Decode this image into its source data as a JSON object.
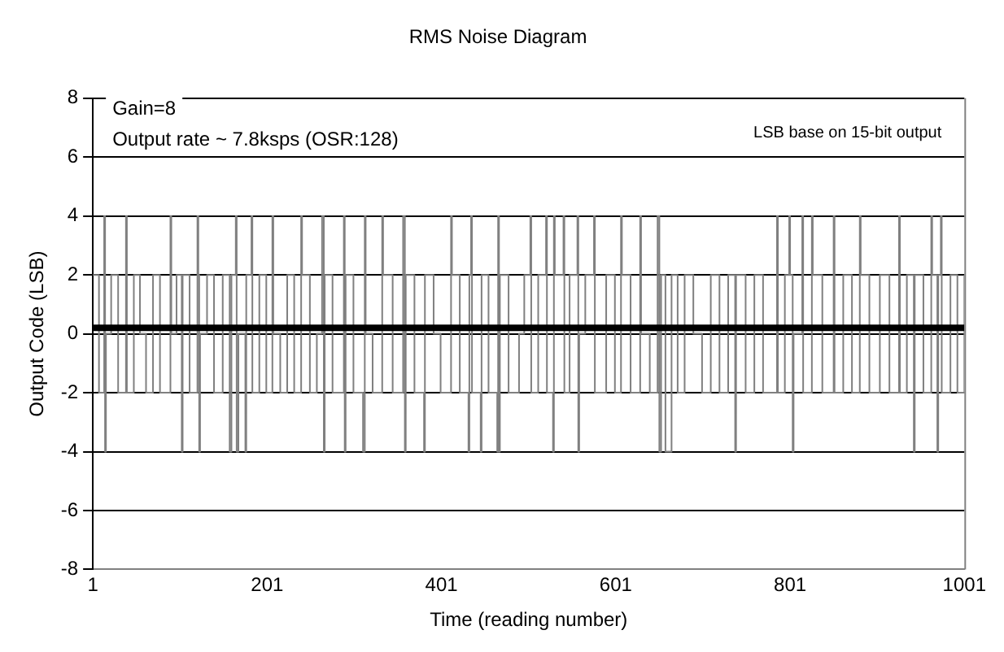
{
  "chart_data": {
    "type": "step",
    "title": "RMS Noise Diagram",
    "xlabel": "Time (reading number)",
    "ylabel": "Output Code (LSB)",
    "annotations": [
      "Gain=8",
      "Output rate ~ 7.8ksps (OSR:128)",
      "LSB base on 15-bit output"
    ],
    "xlim": [
      1,
      1001
    ],
    "xticks": [
      1,
      201,
      401,
      601,
      801,
      1001
    ],
    "ylim": [
      -8,
      8
    ],
    "yticks": [
      -8,
      -6,
      -4,
      -2,
      0,
      2,
      4,
      6,
      8
    ],
    "grid": "y",
    "legend": false,
    "ref_lines": [
      {
        "axis": "y",
        "value": 0.2,
        "color": "#000000"
      }
    ],
    "series": [
      {
        "color": "#808080",
        "x": [
          1,
          8,
          14,
          15,
          16,
          22,
          30,
          39,
          40,
          48,
          55,
          62,
          70,
          78,
          90,
          91,
          97,
          103,
          104,
          112,
          121,
          122,
          123,
          124,
          132,
          140,
          150,
          158,
          160,
          165,
          166,
          168,
          176,
          177,
          183,
          184,
          192,
          200,
          207,
          208,
          216,
          224,
          232,
          240,
          241,
          250,
          258,
          264,
          266,
          267,
          276,
          289,
          290,
          291,
          300,
          311,
          313,
          314,
          322,
          333,
          334,
          345,
          357,
          359,
          360,
          370,
          381,
          382,
          392,
          400,
          412,
          413,
          422,
          432,
          433,
          435,
          436,
          446,
          447,
          455,
          465,
          466,
          467,
          468,
          478,
          490,
          496,
          503,
          504,
          512,
          521,
          522,
          529,
          530,
          531,
          541,
          542,
          548,
          557,
          558,
          559,
          566,
          576,
          577,
          590,
          600,
          607,
          608,
          618,
          629,
          630,
          640,
          649,
          651,
          653,
          658,
          664,
          665,
          672,
          680,
          690,
          700,
          710,
          720,
          730,
          738,
          739,
          750,
          760,
          770,
          786,
          787,
          795,
          800,
          801,
          804,
          805,
          815,
          816,
          826,
          827,
          838,
          851,
          852,
          862,
          872,
          881,
          882,
          892,
          904,
          915,
          926,
          927,
          935,
          943,
          944,
          954,
          963,
          964,
          970,
          971,
          974,
          975,
          985,
          993,
          1001
        ],
        "values": [
          2,
          -2,
          4,
          -4,
          0,
          2,
          -2,
          4,
          -2,
          2,
          0,
          -2,
          2,
          -2,
          4,
          0,
          2,
          -4,
          2,
          -2,
          4,
          2,
          -4,
          0,
          2,
          -2,
          2,
          -4,
          2,
          4,
          -4,
          0,
          -4,
          2,
          4,
          -2,
          2,
          -2,
          4,
          0,
          -2,
          2,
          -2,
          4,
          2,
          -2,
          0,
          4,
          -4,
          2,
          -2,
          4,
          -4,
          2,
          -2,
          -4,
          4,
          0,
          -2,
          4,
          2,
          -2,
          4,
          -4,
          2,
          -2,
          -4,
          2,
          0,
          -2,
          4,
          2,
          -2,
          -4,
          2,
          4,
          -2,
          -4,
          2,
          -2,
          -4,
          4,
          -4,
          2,
          -2,
          0,
          2,
          4,
          -2,
          2,
          4,
          -2,
          -4,
          4,
          2,
          4,
          -2,
          2,
          4,
          -4,
          0,
          2,
          4,
          -2,
          2,
          -2,
          4,
          2,
          -2,
          4,
          0,
          -2,
          4,
          -4,
          2,
          -4,
          -4,
          2,
          -2,
          2,
          0,
          -2,
          2,
          -2,
          2,
          -4,
          2,
          -2,
          2,
          -2,
          4,
          -2,
          2,
          4,
          2,
          -4,
          0,
          4,
          -2,
          4,
          2,
          -2,
          4,
          -2,
          2,
          -2,
          4,
          2,
          -2,
          2,
          -2,
          4,
          -2,
          2,
          -4,
          2,
          -2,
          4,
          2,
          -4,
          2,
          4,
          -2,
          2,
          -2,
          2
        ]
      }
    ]
  }
}
